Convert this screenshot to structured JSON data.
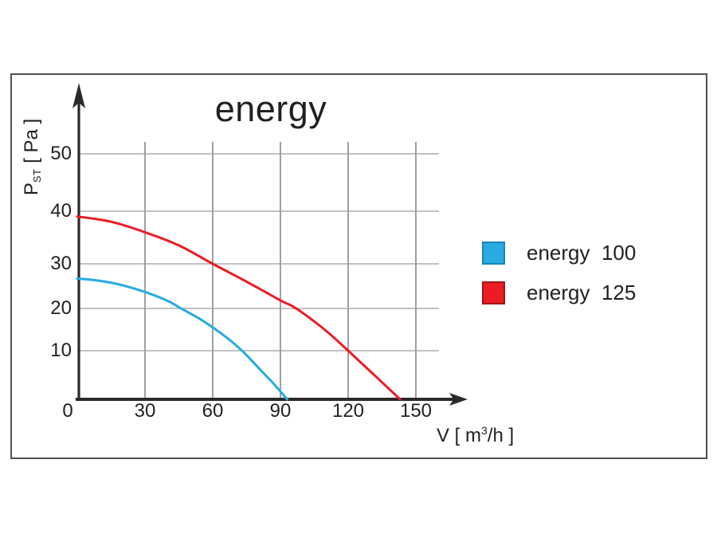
{
  "chart_data": {
    "type": "line",
    "title": "energy",
    "xlabel": "V [ m3/h ]",
    "xlabel_parts": {
      "pre": "V [ m",
      "sup": "3",
      "post": "/h ]"
    },
    "ylabel": "P_ST [ Pa ]",
    "ylabel_parts": {
      "pre": "P",
      "sub": "ST",
      "post": " [ Pa ]"
    },
    "x_ticks": [
      0,
      30,
      60,
      90,
      120,
      150
    ],
    "y_ticks": [
      10,
      20,
      30,
      40,
      50
    ],
    "xlim": [
      0,
      168
    ],
    "ylim": [
      0,
      57
    ],
    "grid": true,
    "legend_position": "right",
    "series": [
      {
        "name": "energy  100",
        "color": "#29abe2",
        "swatch_border": "#1884b4",
        "x": [
          0,
          10,
          20,
          30,
          40,
          46,
          55,
          65,
          73,
          80,
          87,
          93
        ],
        "y": [
          26.7,
          26.2,
          25.2,
          23.7,
          21.7,
          20,
          17.3,
          13.6,
          10,
          6.6,
          3.2,
          0
        ]
      },
      {
        "name": "energy  125",
        "color": "#ec1c24",
        "swatch_border": "#a31318",
        "x": [
          0,
          15,
          30,
          45,
          60,
          75,
          90,
          97,
          110,
          120,
          132,
          143
        ],
        "y": [
          39,
          38,
          36,
          33.5,
          30,
          26,
          21.8,
          20,
          14.8,
          10,
          4.8,
          0
        ]
      }
    ]
  },
  "colors": {
    "text": "#231f20",
    "axis": "#2a2a2a",
    "h_grid": "#9b9da0",
    "v_grid": "#6b6d70",
    "frame_border": "#505153",
    "background": "#ffffff"
  }
}
